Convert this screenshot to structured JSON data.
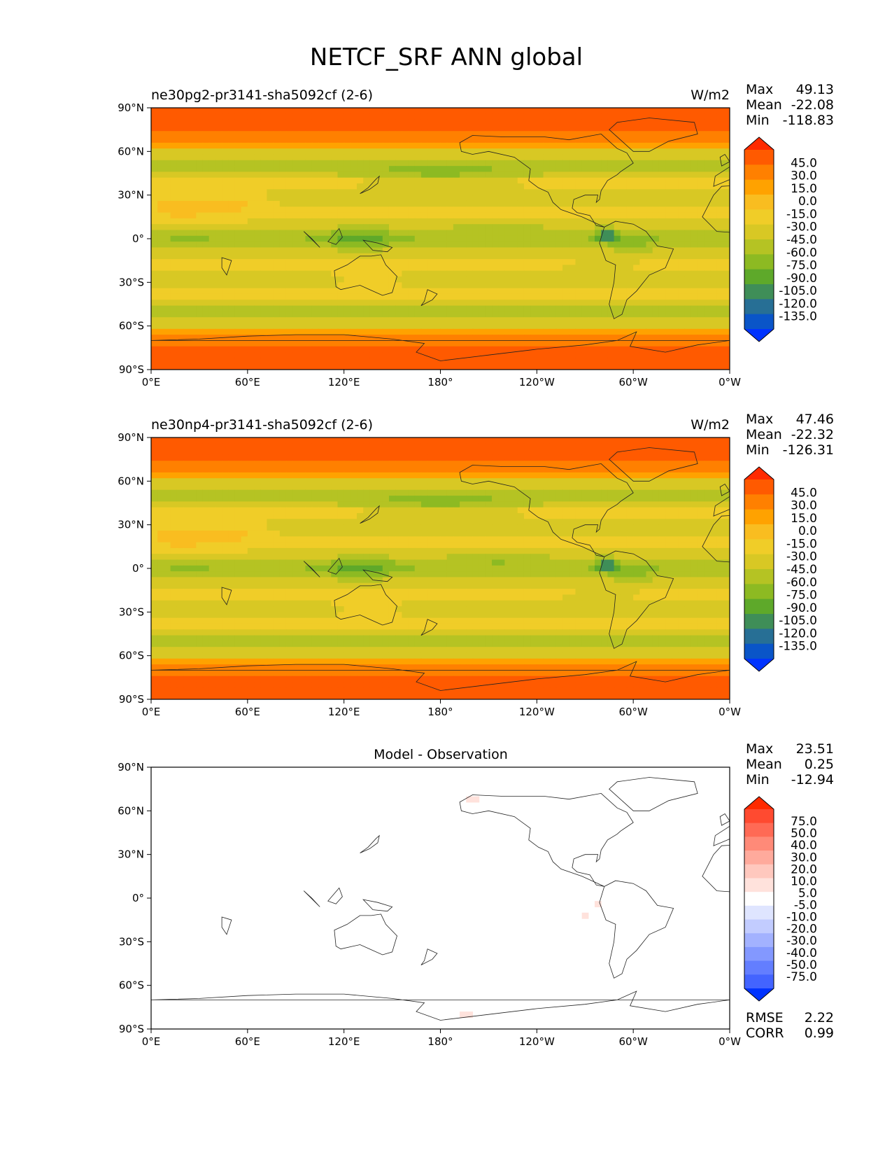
{
  "chart_data": {
    "type": "heatmap",
    "title": "NETCF_SRF ANN global",
    "x_ticks": [
      "0°E",
      "60°E",
      "120°E",
      "180°",
      "120°W",
      "60°W",
      "0°W"
    ],
    "y_ticks": [
      "90°N",
      "60°N",
      "30°N",
      "0°",
      "30°S",
      "60°S",
      "90°S"
    ],
    "xlim": [
      0,
      360
    ],
    "ylim": [
      -90,
      90
    ],
    "panels": [
      {
        "id": "test",
        "subtitle": "ne30pg2-pr3141-sha5092cf (2-6)",
        "units": "W/m2",
        "stats": [
          {
            "label": "Max",
            "value": "49.13"
          },
          {
            "label": "Mean",
            "value": "-22.08"
          },
          {
            "label": "Min",
            "value": "-118.83"
          }
        ],
        "colorbar": {
          "levels": [
            "45.0",
            "30.0",
            "15.0",
            "0.0",
            "-15.0",
            "-30.0",
            "-45.0",
            "-60.0",
            "-75.0",
            "-90.0",
            "-105.0",
            "-120.0",
            "-135.0"
          ],
          "colors": [
            "#ff2a00",
            "#ff5a00",
            "#ff8000",
            "#ffa200",
            "#f9bd20",
            "#f0cd28",
            "#d8c824",
            "#b5c323",
            "#8dba22",
            "#5ea92a",
            "#3f8e58",
            "#276f95",
            "#0a55c8",
            "#0033ff"
          ]
        }
      },
      {
        "id": "ref",
        "subtitle": "ne30np4-pr3141-sha5092cf (2-6)",
        "units": "W/m2",
        "stats": [
          {
            "label": "Max",
            "value": "47.46"
          },
          {
            "label": "Mean",
            "value": "-22.32"
          },
          {
            "label": "Min",
            "value": "-126.31"
          }
        ],
        "colorbar": {
          "levels": [
            "45.0",
            "30.0",
            "15.0",
            "0.0",
            "-15.0",
            "-30.0",
            "-45.0",
            "-60.0",
            "-75.0",
            "-90.0",
            "-105.0",
            "-120.0",
            "-135.0"
          ],
          "colors": [
            "#ff2a00",
            "#ff5a00",
            "#ff8000",
            "#ffa200",
            "#f9bd20",
            "#f0cd28",
            "#d8c824",
            "#b5c323",
            "#8dba22",
            "#5ea92a",
            "#3f8e58",
            "#276f95",
            "#0a55c8",
            "#0033ff"
          ]
        }
      },
      {
        "id": "diff",
        "subtitle": "Model - Observation",
        "units": "",
        "stats": [
          {
            "label": "Max",
            "value": "23.51"
          },
          {
            "label": "Mean",
            "value": "0.25"
          },
          {
            "label": "Min",
            "value": "-12.94"
          }
        ],
        "colorbar": {
          "levels": [
            "75.0",
            "50.0",
            "40.0",
            "30.0",
            "20.0",
            "10.0",
            "5.0",
            "-5.0",
            "-10.0",
            "-20.0",
            "-30.0",
            "-40.0",
            "-50.0",
            "-75.0"
          ],
          "colors": [
            "#ff2a00",
            "#ff4a30",
            "#ff6a55",
            "#ff8a78",
            "#ffaa9c",
            "#ffc8be",
            "#ffe2dc",
            "#ffffff",
            "#dfe5ff",
            "#c2ccff",
            "#a3b2ff",
            "#8398ff",
            "#637eff",
            "#4364ff",
            "#0033ff"
          ]
        },
        "bottom_stats": [
          {
            "label": "RMSE",
            "value": "2.22"
          },
          {
            "label": "CORR",
            "value": "0.99"
          }
        ]
      }
    ]
  }
}
